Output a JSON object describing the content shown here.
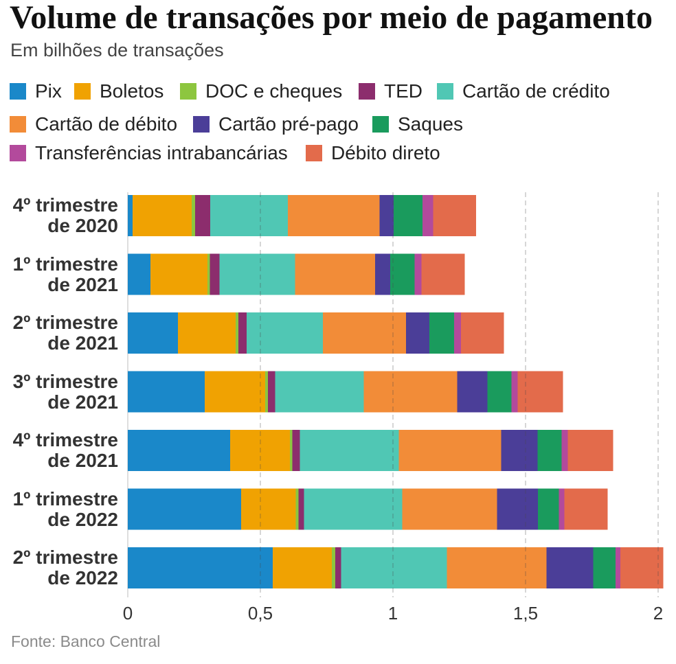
{
  "chart_data": {
    "type": "bar",
    "orientation": "horizontal",
    "stacked": true,
    "title": "Volume de transações por meio de pagamento",
    "subtitle": "Em bilhões de transações",
    "xlabel": "",
    "ylabel": "",
    "xlim": [
      0,
      2
    ],
    "grid": true,
    "legend_position": "top",
    "x_ticks": [
      {
        "value": 0,
        "label": "0"
      },
      {
        "value": 0.5,
        "label": "0,5"
      },
      {
        "value": 1,
        "label": "1"
      },
      {
        "value": 1.5,
        "label": "1,5"
      },
      {
        "value": 2,
        "label": "2"
      }
    ],
    "categories": [
      "4º trimestre de 2020",
      "1º trimestre de 2021",
      "2º trimestre de 2021",
      "3º trimestre de 2021",
      "4º trimestre de 2021",
      "1º trimestre de 2022",
      "2º trimestre de 2022"
    ],
    "series": [
      {
        "name": "Pix",
        "color": "#1a88c9",
        "values": [
          0.018,
          0.085,
          0.189,
          0.29,
          0.386,
          0.427,
          0.547
        ]
      },
      {
        "name": "Boletos",
        "color": "#f0a202",
        "values": [
          0.223,
          0.215,
          0.218,
          0.228,
          0.225,
          0.207,
          0.223
        ]
      },
      {
        "name": "DOC e cheques",
        "color": "#8dc63f",
        "values": [
          0.013,
          0.01,
          0.01,
          0.01,
          0.01,
          0.01,
          0.013
        ]
      },
      {
        "name": "TED",
        "color": "#8c2d6d",
        "values": [
          0.057,
          0.036,
          0.031,
          0.028,
          0.028,
          0.021,
          0.021
        ]
      },
      {
        "name": "Cartão de crédito",
        "color": "#50c7b4",
        "values": [
          0.293,
          0.285,
          0.288,
          0.334,
          0.373,
          0.37,
          0.399
        ]
      },
      {
        "name": "Cartão de débito",
        "color": "#f28c38",
        "values": [
          0.345,
          0.301,
          0.313,
          0.352,
          0.386,
          0.358,
          0.376
        ]
      },
      {
        "name": "Cartão pré-pago",
        "color": "#4b3e98",
        "values": [
          0.054,
          0.057,
          0.088,
          0.114,
          0.137,
          0.153,
          0.176
        ]
      },
      {
        "name": "Saques",
        "color": "#1a9b5d",
        "values": [
          0.109,
          0.093,
          0.093,
          0.091,
          0.091,
          0.08,
          0.085
        ]
      },
      {
        "name": "Transferências intrabancárias",
        "color": "#b34a9c",
        "values": [
          0.039,
          0.026,
          0.026,
          0.023,
          0.023,
          0.021,
          0.018
        ]
      },
      {
        "name": "Débito direto",
        "color": "#e36b4b",
        "values": [
          0.163,
          0.163,
          0.163,
          0.171,
          0.171,
          0.163,
          0.161
        ]
      }
    ]
  },
  "source": "Fonte: Banco Central"
}
